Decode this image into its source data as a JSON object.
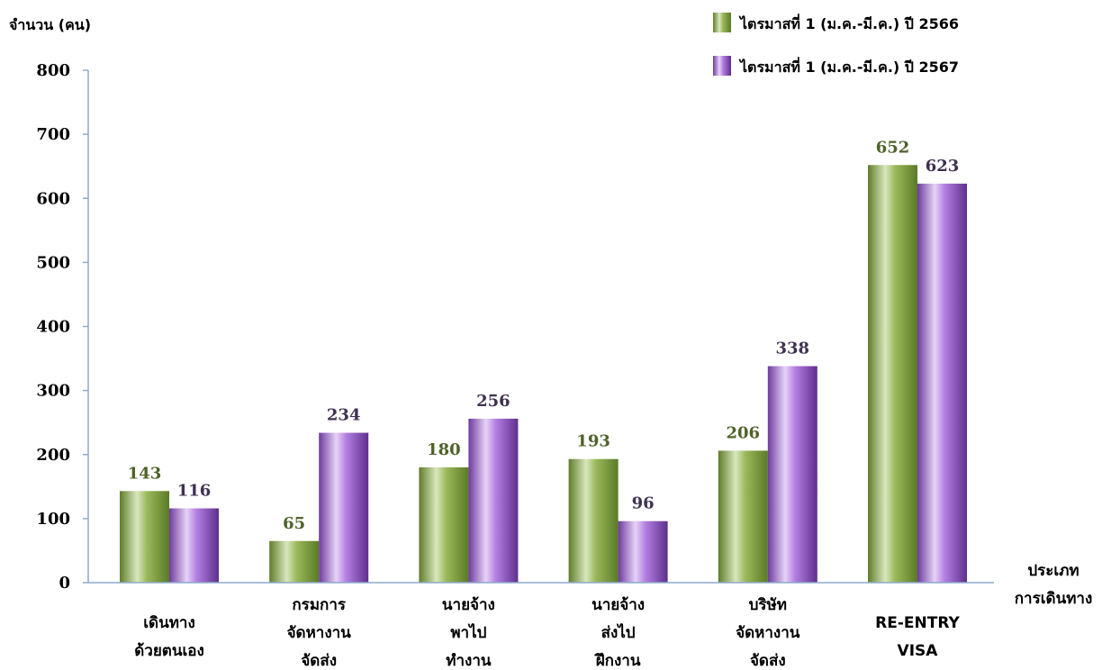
{
  "chart_data": {
    "type": "bar",
    "ylabel": "จำนวน (คน)",
    "xlabel_lines": [
      "ประเภท",
      "การเดินทาง"
    ],
    "ylim": [
      0,
      800
    ],
    "yticks": [
      0,
      100,
      200,
      300,
      400,
      500,
      600,
      700,
      800
    ],
    "grid": false,
    "legend_position": "top-right",
    "categories": [
      [
        "เดินทาง",
        "ด้วยตนเอง"
      ],
      [
        "กรมการ",
        "จัดหางาน",
        "จัดส่ง"
      ],
      [
        "นายจ้าง",
        "พาไป",
        "ทำงาน"
      ],
      [
        "นายจ้าง",
        "ส่งไป",
        "ฝึกงาน"
      ],
      [
        "บริษัท",
        "จัดหางาน",
        "จัดส่ง"
      ],
      [
        "RE-ENTRY",
        "VISA"
      ]
    ],
    "series": [
      {
        "name": "ไตรมาสที่ 1 (ม.ค.-มี.ค.) ปี 2566",
        "values": [
          143,
          65,
          180,
          193,
          206,
          652
        ],
        "color": "#7a9a3a",
        "label_color": "#4f6228"
      },
      {
        "name": "ไตรมาสที่ 1 (ม.ค.-มี.ค.) ปี 2567",
        "values": [
          116,
          234,
          256,
          96,
          338,
          623
        ],
        "color": "#8a4fc0",
        "label_color": "#3f3151"
      }
    ]
  }
}
